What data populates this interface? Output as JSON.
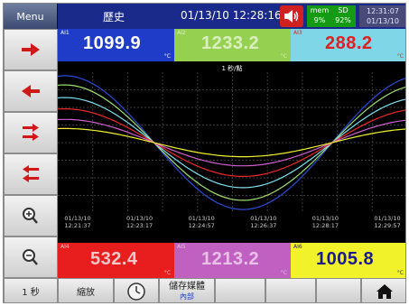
{
  "topbar": {
    "menu_label": "Menu",
    "title": "歷史",
    "datetime": "01/13/10 12:28:16",
    "mem_label": "mem",
    "mem_value": "9%",
    "sd_label": "SD",
    "sd_value": "92%",
    "clock_time": "12:31:07",
    "clock_date": "01/13/10"
  },
  "left_buttons": [
    {
      "icon": "arrow-right-icon"
    },
    {
      "icon": "arrow-left-icon"
    },
    {
      "icon": "double-arrow-right-icon"
    },
    {
      "icon": "double-arrow-left-icon"
    },
    {
      "icon": "zoom-in-icon"
    },
    {
      "icon": "zoom-out-icon"
    }
  ],
  "panels_top": [
    {
      "tag": "AI1",
      "value": "1099.9",
      "unit": "°C",
      "bg": "#1e3cc8",
      "color": "#ffffff"
    },
    {
      "tag": "AI2",
      "value": "1233.2",
      "unit": "°C",
      "bg": "#96d050",
      "color": "#dbeec0"
    },
    {
      "tag": "AI3",
      "value": "288.2",
      "unit": "°C",
      "bg": "#7ed6e6",
      "color": "#e02020"
    }
  ],
  "panels_bottom": [
    {
      "tag": "AI4",
      "value": "532.4",
      "unit": "°C",
      "bg": "#e81e1e",
      "color": "#f4c8c8"
    },
    {
      "tag": "AI5",
      "value": "1213.2",
      "unit": "°C",
      "bg": "#c060c0",
      "color": "#e8c0e8"
    },
    {
      "tag": "AI6",
      "value": "1005.8",
      "unit": "°C",
      "bg": "#f2f22a",
      "color": "#1a1a8a"
    }
  ],
  "chart": {
    "scale_label": "1 秒/點",
    "colors": {
      "background": "#000000",
      "grid": "#3a3a3a"
    }
  },
  "chart_data": {
    "type": "line",
    "x": [
      "01/13/10 12:21:37",
      "01/13/10 12:23:17",
      "01/13/10 12:24:57",
      "01/13/10 12:26:37",
      "01/13/10 12:28:17",
      "01/13/10 12:29:57"
    ],
    "series": [
      {
        "color": "#2a4bd8",
        "amplitude": 0.95
      },
      {
        "color": "#a0e070",
        "amplitude": 0.82
      },
      {
        "color": "#7fe0f0",
        "amplitude": 0.64
      },
      {
        "color": "#f02828",
        "amplitude": 0.48
      },
      {
        "color": "#d060d0",
        "amplitude": 0.33
      },
      {
        "color": "#f0f030",
        "amplitude": 0.2
      }
    ]
  },
  "bottom_bar": {
    "rate_label": "1 秒",
    "zoom_label": "縮放",
    "save_label": "儲存媒體",
    "save_sub": "內部",
    "clock_icon": "clock-icon",
    "home_icon": "home-icon"
  }
}
